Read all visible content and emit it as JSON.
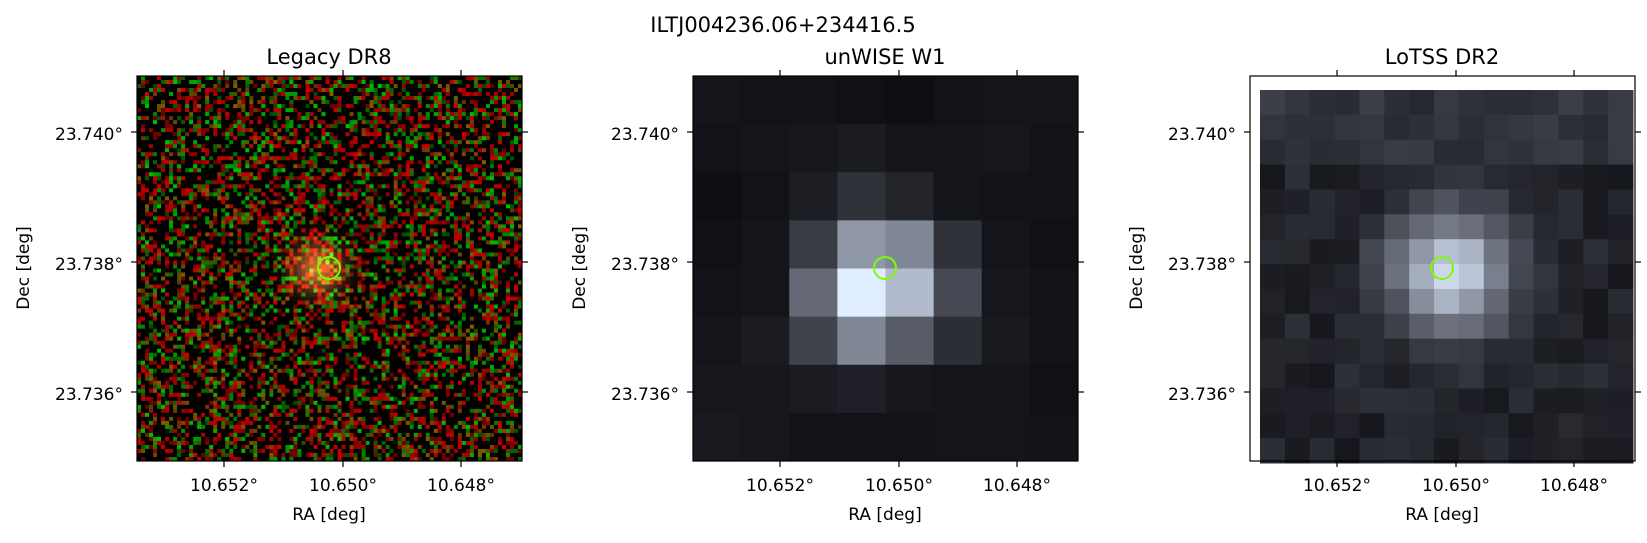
{
  "figure": {
    "title": "ILTJ004236.06+234416.5"
  },
  "panels": [
    {
      "title": "Legacy DR8",
      "style": "rgb-noise",
      "xlabel": "RA [deg]",
      "ylabel": "Dec [deg]",
      "xticks": [
        "10.652°",
        "10.650°",
        "10.648°"
      ],
      "yticks": [
        "23.740°",
        "23.738°",
        "23.736°"
      ],
      "marker_color": "#7cfc00"
    },
    {
      "title": "unWISE W1",
      "style": "coarse-gray",
      "xlabel": "RA [deg]",
      "ylabel": "Dec [deg]",
      "xticks": [
        "10.652°",
        "10.650°",
        "10.648°"
      ],
      "yticks": [
        "23.740°",
        "23.738°",
        "23.736°"
      ],
      "marker_color": "#7cfc00"
    },
    {
      "title": "LoTSS DR2",
      "style": "medium-gray",
      "xlabel": "RA [deg]",
      "ylabel": "Dec [deg]",
      "xticks": [
        "10.652°",
        "10.650°",
        "10.648°"
      ],
      "yticks": [
        "23.740°",
        "23.738°",
        "23.736°"
      ],
      "marker_color": "#7cfc00"
    }
  ]
}
